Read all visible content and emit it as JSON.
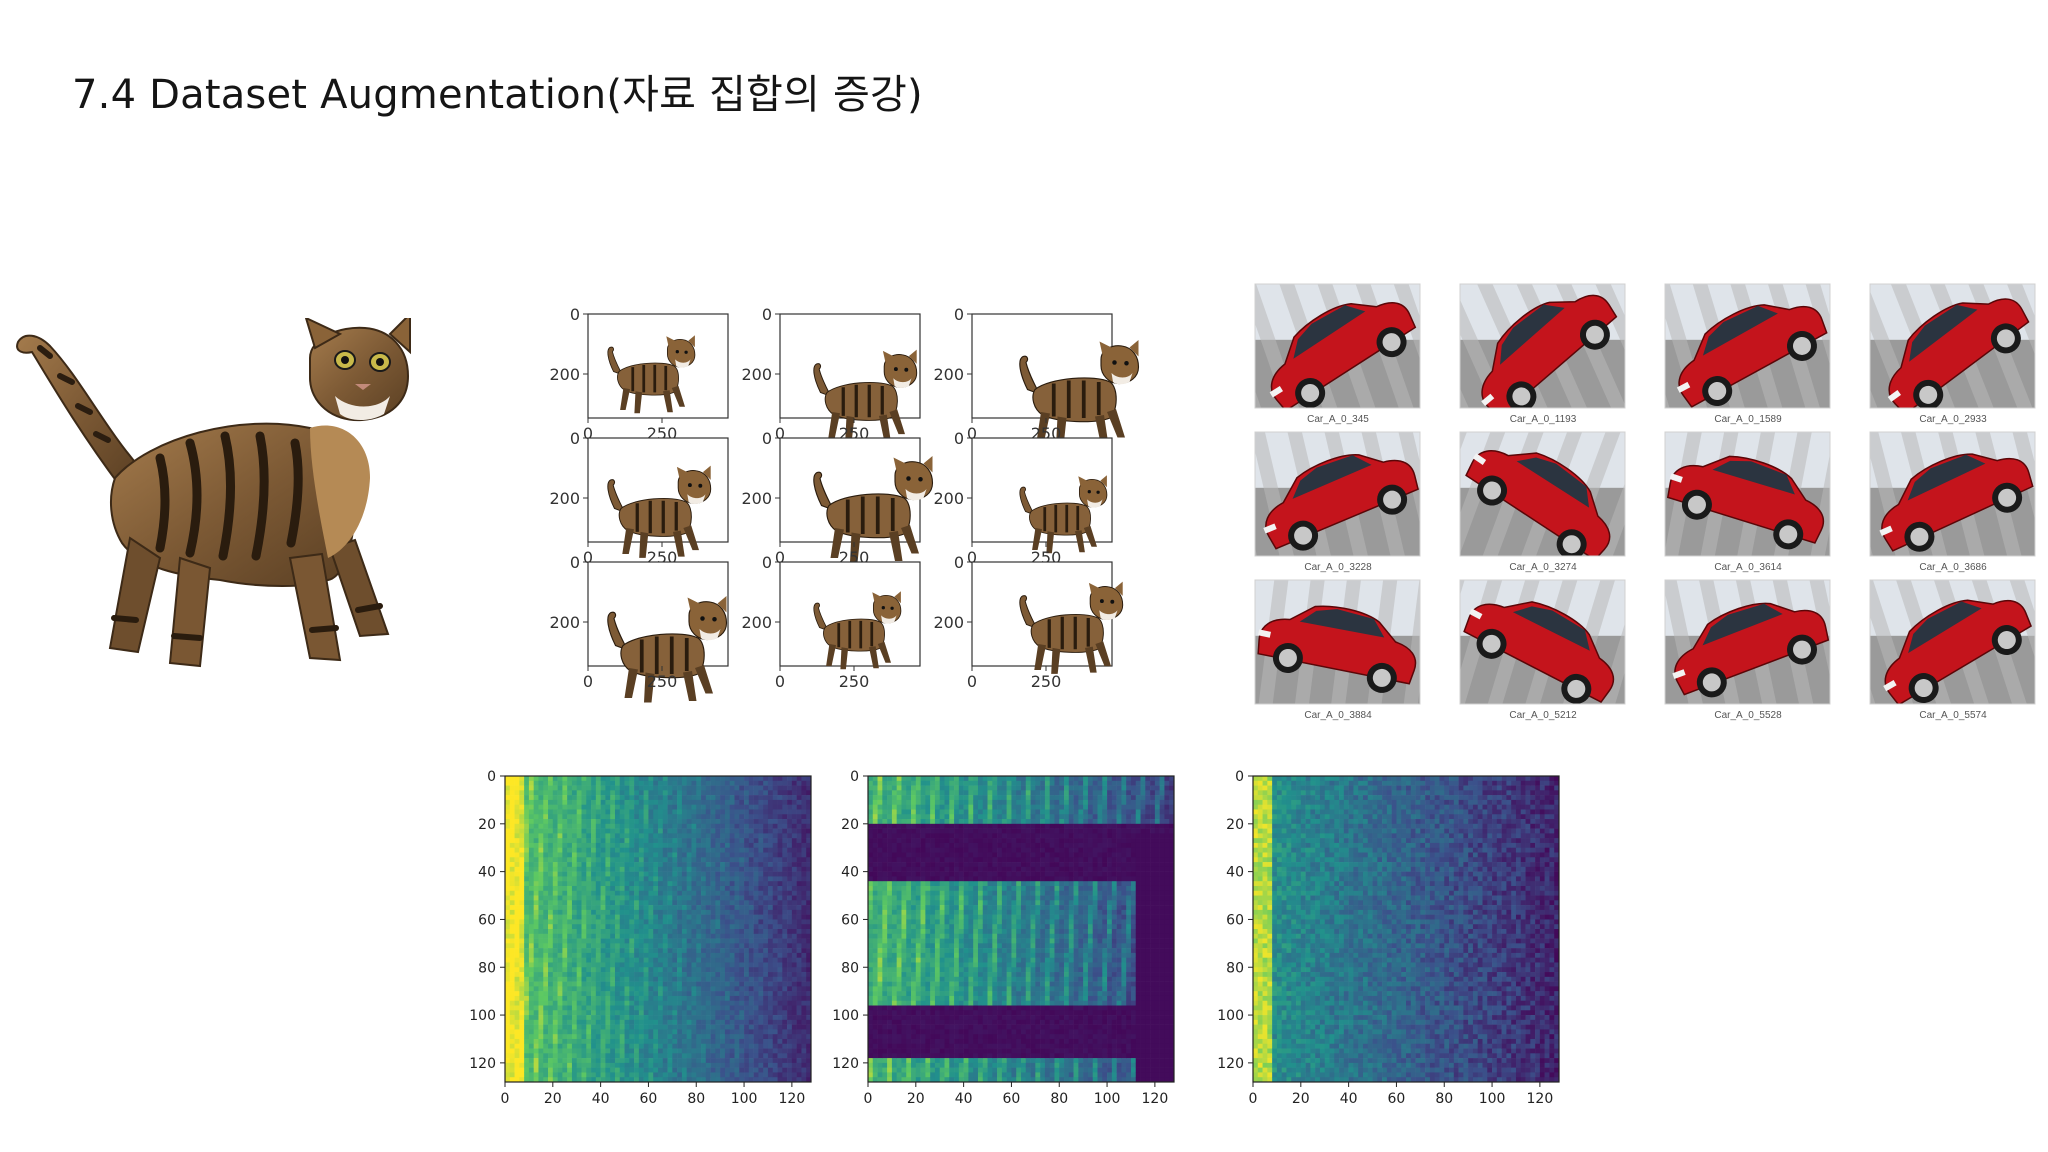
{
  "slide": {
    "title": "7.4 Dataset Augmentation(자료 집합의 증강)"
  },
  "cat_grid": {
    "y_tick_labels": [
      "0",
      "200"
    ],
    "x_tick_labels": [
      "0",
      "250"
    ],
    "panel_count": 9
  },
  "car_grid": {
    "captions": [
      "Car_A_0_345",
      "Car_A_0_1193",
      "Car_A_0_1589",
      "Car_A_0_2933",
      "Car_A_0_3228",
      "Car_A_0_3274",
      "Car_A_0_3614",
      "Car_A_0_3686",
      "Car_A_0_3884",
      "Car_A_0_5212",
      "Car_A_0_5528",
      "Car_A_0_5574"
    ],
    "car_color": "#c4141c"
  },
  "spectrograms": {
    "x_ticks": [
      "0",
      "20",
      "40",
      "60",
      "80",
      "100",
      "120"
    ],
    "y_ticks": [
      "0",
      "20",
      "40",
      "60",
      "80",
      "100",
      "120"
    ],
    "colormap": [
      "#440154",
      "#3b528b",
      "#21918c",
      "#5ec962",
      "#fde725"
    ]
  }
}
